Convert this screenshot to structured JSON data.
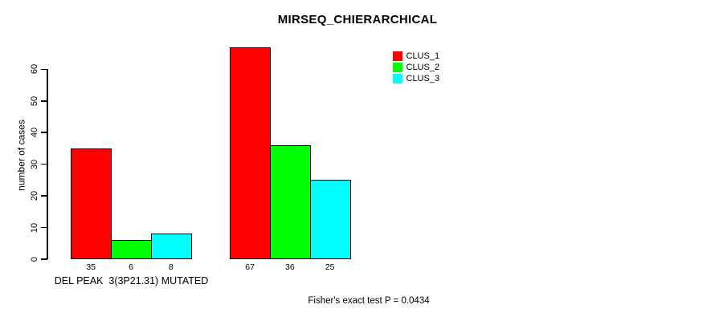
{
  "chart_data": {
    "type": "bar",
    "title": "MIRSEQ_CHIERARCHICAL",
    "ylabel": "number of cases",
    "xlabel": "",
    "categories": [
      "DEL PEAK  3(3P21.31) MUTATED",
      ""
    ],
    "series": [
      {
        "name": "CLUS_1",
        "color": "#ff0000",
        "values": [
          35,
          67
        ]
      },
      {
        "name": "CLUS_2",
        "color": "#00ff00",
        "values": [
          6,
          36
        ]
      },
      {
        "name": "CLUS_3",
        "color": "#00ffff",
        "values": [
          8,
          25
        ]
      }
    ],
    "bar_value_labels": [
      [
        35,
        6,
        8
      ],
      [
        67,
        36,
        25
      ]
    ],
    "yticks": [
      0,
      10,
      20,
      30,
      40,
      50,
      60
    ],
    "ylim": [
      0,
      67
    ],
    "grid": false,
    "legend_position": "top-right",
    "annotation": "Fisher's exact test P = 0.0434",
    "colors": {
      "bar_border": "#000000",
      "axis": "#000000",
      "text": "#000000",
      "background": "#ffffff"
    }
  }
}
